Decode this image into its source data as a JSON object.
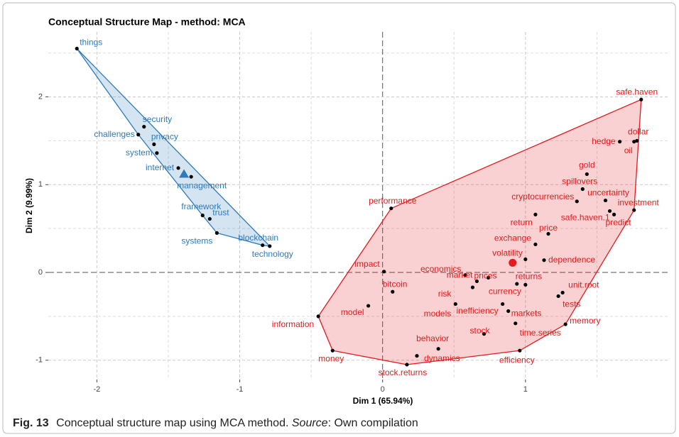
{
  "chart_data": {
    "type": "scatter",
    "title": "Conceptual Structure Map - method: MCA",
    "x_label": "Dim 1 (65.94%)",
    "y_label": "Dim 2 (9.99%)",
    "xlim": [
      -2.34,
      2.005
    ],
    "ylim": [
      -1.22,
      2.74
    ],
    "xticks": [
      -2,
      -1,
      0,
      1
    ],
    "yticks": [
      -1,
      0,
      1,
      2
    ],
    "xminor": [
      -1.5,
      -0.5,
      0.5,
      1.5
    ],
    "yminor": [
      -0.5,
      0.5,
      1.5,
      2.5
    ],
    "grid": true,
    "series": [
      {
        "color": "#2f7ab9",
        "centroid": [
          -1.39,
          1.12
        ],
        "centroid_marker": "triangle",
        "labels": [
          "things",
          "security",
          "challenges",
          "privacy",
          "system",
          "internet",
          "management",
          "framework",
          "trust",
          "systems",
          "blockchain",
          "technology"
        ],
        "x": [
          -2.14,
          -1.67,
          -1.71,
          -1.6,
          -1.58,
          -1.43,
          -1.34,
          -1.26,
          -1.21,
          -1.16,
          -0.84,
          -0.79
        ],
        "values": [
          2.55,
          1.66,
          1.57,
          1.46,
          1.36,
          1.19,
          1.09,
          0.65,
          0.61,
          0.45,
          0.31,
          0.3
        ]
      },
      {
        "color": "#e41a1c",
        "centroid": [
          0.91,
          0.11
        ],
        "centroid_marker": "circle",
        "labels": [
          "safe.haven",
          "hedge",
          "oil",
          "dollar",
          "gold",
          "spillovers",
          "uncertainty",
          "cryptocurrencies",
          "investment",
          "safe.haven.1",
          "predict",
          "return",
          "price",
          "exchange",
          "dependence",
          "volatility",
          "performance",
          "impact",
          "economics",
          "prices",
          "market",
          "risk",
          "returns",
          "currency",
          "bitcoin",
          "unit.root",
          "tests",
          "model",
          "models",
          "inefficiency",
          "markets",
          "time.series",
          "stock",
          "memory",
          "information",
          "money",
          "behavior",
          "dynamics",
          "stock.returns",
          "efficiency"
        ],
        "x": [
          1.81,
          1.66,
          1.76,
          1.78,
          1.43,
          1.4,
          1.56,
          1.36,
          1.76,
          1.59,
          1.62,
          1.07,
          1.16,
          1.07,
          1.13,
          1.0,
          0.06,
          0.01,
          0.58,
          0.74,
          0.66,
          0.63,
          0.94,
          1.0,
          0.07,
          1.26,
          1.23,
          -0.1,
          0.51,
          0.84,
          0.88,
          0.93,
          0.71,
          1.28,
          -0.45,
          -0.35,
          0.39,
          0.24,
          0.17,
          0.96
        ],
        "values": [
          1.97,
          1.49,
          1.49,
          1.5,
          1.12,
          0.95,
          0.82,
          0.81,
          0.71,
          0.7,
          0.66,
          0.66,
          0.44,
          0.32,
          0.14,
          0.15,
          0.73,
          0.01,
          -0.03,
          -0.06,
          -0.1,
          -0.17,
          -0.13,
          -0.14,
          -0.22,
          -0.23,
          -0.27,
          -0.38,
          -0.36,
          -0.36,
          -0.44,
          -0.58,
          -0.7,
          -0.59,
          -0.5,
          -0.89,
          -0.87,
          -0.95,
          -1.05,
          -0.89
        ]
      }
    ],
    "caption_label": "Fig. 13",
    "caption_text": "Conceptual structure map using MCA method.",
    "caption_source_label": "Source",
    "caption_source_text": ": Own compilation"
  }
}
